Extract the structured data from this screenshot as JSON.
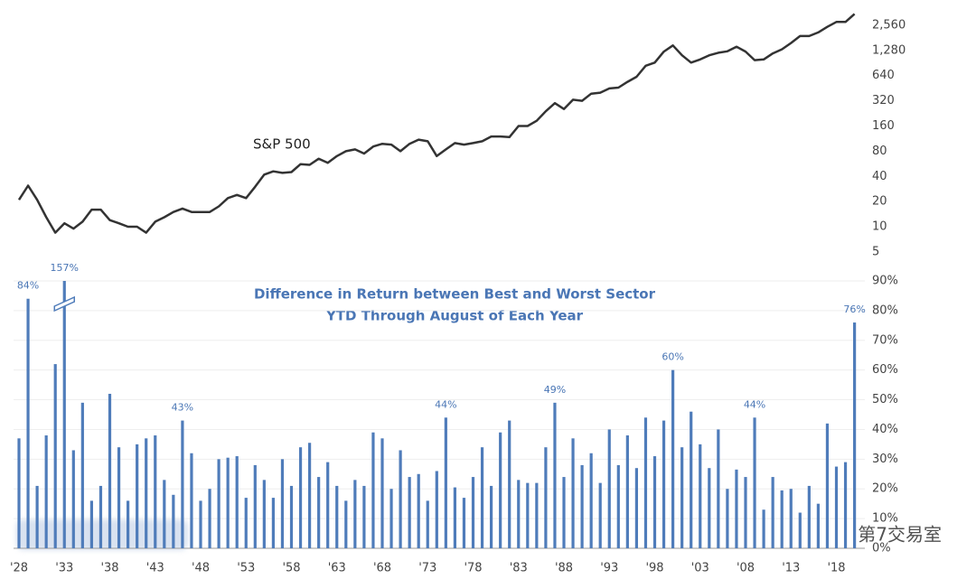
{
  "chart_data": [
    {
      "type": "line",
      "annotation": "S&P 500",
      "color": "#333333",
      "log_scale": true,
      "ylim": [
        4.3,
        4000
      ],
      "yticks": [
        5,
        10,
        20,
        40,
        80,
        160,
        320,
        640,
        {
          "value": 1280,
          "label": "1,280"
        },
        {
          "value": 2560,
          "label": "2,560"
        }
      ],
      "values": [
        21,
        31,
        21,
        13,
        8.5,
        11,
        9.5,
        11.5,
        16,
        16,
        12,
        11,
        10,
        10,
        8.5,
        11.5,
        13,
        15,
        16.5,
        15,
        15,
        15,
        17.5,
        22,
        24,
        22,
        30,
        42,
        46,
        44,
        45,
        56,
        55,
        65,
        58,
        70,
        80,
        84,
        75,
        91,
        98,
        96,
        80,
        98,
        110,
        105,
        70,
        84,
        100,
        96,
        100,
        105,
        120,
        120,
        118,
        160,
        160,
        185,
        240,
        300,
        255,
        330,
        320,
        390,
        400,
        450,
        460,
        540,
        620,
        840,
        915,
        1240,
        1470,
        1120,
        915,
        1000,
        1120,
        1200,
        1250,
        1420,
        1240,
        980,
        1000,
        1180,
        1320,
        1570,
        1900,
        1900,
        2100,
        2450,
        2800,
        2800,
        3500
      ]
    },
    {
      "type": "bar",
      "title": "Difference in Return between Best and Worst Sector",
      "subtitle": "YTD Through August of Each Year",
      "color": "#4f7cba",
      "categories": [
        "'28",
        null,
        null,
        null,
        null,
        "'33",
        null,
        null,
        null,
        null,
        "'38",
        null,
        null,
        null,
        null,
        "'43",
        null,
        null,
        null,
        null,
        "'48",
        null,
        null,
        null,
        null,
        "'53",
        null,
        null,
        null,
        null,
        "'58",
        null,
        null,
        null,
        null,
        "'63",
        null,
        null,
        null,
        null,
        "'68",
        null,
        null,
        null,
        null,
        "'73",
        null,
        null,
        null,
        null,
        "'78",
        null,
        null,
        null,
        null,
        "'83",
        null,
        null,
        null,
        null,
        "'88",
        null,
        null,
        null,
        null,
        "'93",
        null,
        null,
        null,
        null,
        "'98",
        null,
        null,
        null,
        null,
        "'03",
        null,
        null,
        null,
        null,
        "'08",
        null,
        null,
        null,
        null,
        "'13",
        null,
        null,
        null,
        null,
        "'18",
        null,
        null
      ],
      "values": [
        37,
        84,
        21,
        38,
        62,
        157,
        33,
        49,
        16,
        21,
        52,
        34,
        16,
        35,
        37,
        38,
        23,
        18,
        43,
        32,
        16,
        20,
        30,
        30.5,
        31,
        17,
        28,
        23,
        17,
        30,
        21,
        34,
        35.5,
        24,
        29,
        21,
        16,
        23,
        21,
        39,
        37,
        20,
        33,
        24,
        25,
        16,
        26,
        44,
        20.5,
        17,
        24,
        34,
        21,
        39,
        43,
        23,
        22,
        22,
        34,
        49,
        24,
        37,
        28,
        32,
        22,
        40,
        28,
        38,
        27,
        44,
        31,
        43,
        60,
        34,
        46,
        35,
        27,
        40,
        20,
        26.5,
        24,
        44,
        13,
        24,
        19.5,
        20,
        12,
        21,
        15,
        42,
        27.5,
        29,
        76
      ],
      "value_labels": [
        null,
        "84%",
        null,
        null,
        null,
        "157%",
        null,
        null,
        null,
        null,
        null,
        null,
        null,
        null,
        null,
        null,
        null,
        null,
        "43%",
        null,
        null,
        null,
        null,
        null,
        null,
        null,
        null,
        null,
        null,
        null,
        null,
        null,
        null,
        null,
        null,
        null,
        null,
        null,
        null,
        null,
        null,
        null,
        null,
        null,
        null,
        null,
        null,
        "44%",
        null,
        null,
        null,
        null,
        null,
        null,
        null,
        null,
        null,
        null,
        null,
        "49%",
        null,
        null,
        null,
        null,
        null,
        null,
        null,
        null,
        null,
        null,
        null,
        null,
        "60%",
        null,
        null,
        null,
        null,
        null,
        null,
        null,
        null,
        "44%",
        null,
        null,
        null,
        null,
        null,
        null,
        null,
        null,
        null,
        null,
        "76%"
      ],
      "ylim": [
        0,
        90
      ],
      "yticks": [
        {
          "value": 0,
          "label": "0%"
        },
        {
          "value": 10,
          "label": "10%"
        },
        {
          "value": 20,
          "label": "20%"
        },
        {
          "value": 30,
          "label": "30%"
        },
        {
          "value": 40,
          "label": "40%"
        },
        {
          "value": 50,
          "label": "50%"
        },
        {
          "value": 60,
          "label": "60%"
        },
        {
          "value": 70,
          "label": "70%"
        },
        {
          "value": 80,
          "label": "80%"
        },
        {
          "value": 90,
          "label": "90%"
        }
      ],
      "grid": true
    }
  ],
  "watermark": "第7交易室"
}
